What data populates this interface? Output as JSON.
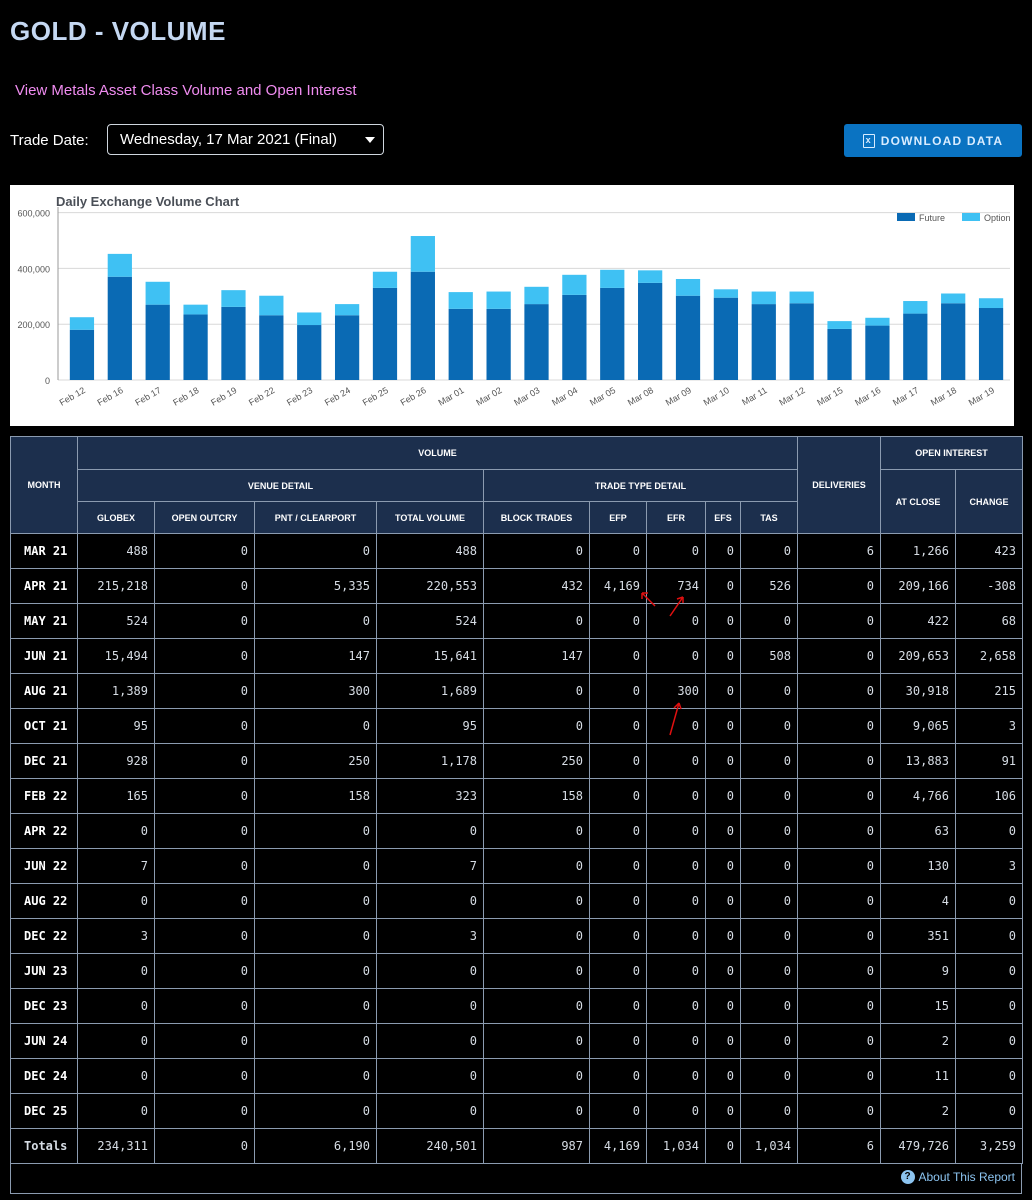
{
  "page_title": "GOLD - VOLUME",
  "metals_link": "View Metals Asset Class Volume and Open Interest",
  "trade_date_label": "Trade Date:",
  "trade_date_value": "Wednesday, 17 Mar 2021 (Final)",
  "download_label": "DOWNLOAD DATA",
  "about_label": "About This Report",
  "chart_data": {
    "type": "bar",
    "title": "Daily Exchange Volume Chart",
    "categories": [
      "Feb 12",
      "Feb 16",
      "Feb 17",
      "Feb 18",
      "Feb 19",
      "Feb 22",
      "Feb 23",
      "Feb 24",
      "Feb 25",
      "Feb 26",
      "Mar 01",
      "Mar 02",
      "Mar 03",
      "Mar 04",
      "Mar 05",
      "Mar 08",
      "Mar 09",
      "Mar 10",
      "Mar 11",
      "Mar 12",
      "Mar 15",
      "Mar 16",
      "Mar 17",
      "Mar 18",
      "Mar 19"
    ],
    "series": [
      {
        "name": "Future",
        "color": "#0a6ab4",
        "values": [
          180000,
          370000,
          270000,
          235000,
          262000,
          232000,
          197000,
          232000,
          330000,
          388000,
          255000,
          255000,
          272000,
          305000,
          330000,
          348000,
          302000,
          295000,
          272000,
          275000,
          183000,
          195000,
          238000,
          275000,
          258000
        ]
      },
      {
        "name": "Option",
        "color": "#3fc1f3",
        "values": [
          45000,
          82000,
          82000,
          35000,
          60000,
          70000,
          45000,
          40000,
          58000,
          128000,
          60000,
          62000,
          62000,
          72000,
          65000,
          45000,
          60000,
          30000,
          45000,
          42000,
          28000,
          28000,
          45000,
          35000,
          35000
        ]
      }
    ],
    "stacked": true,
    "yticks": [
      0,
      200000,
      400000,
      600000
    ],
    "ytick_labels": [
      "0",
      "200,000",
      "400,000",
      "600,000"
    ],
    "ylim": [
      0,
      620000
    ],
    "legend": "top-right",
    "grid": true
  },
  "table": {
    "group_headers": {
      "volume": "VOLUME",
      "venue": "VENUE DETAIL",
      "trade_type": "TRADE TYPE DETAIL",
      "deliveries": "DELIVERIES",
      "open_interest": "OPEN INTEREST",
      "month": "MONTH"
    },
    "columns": [
      "GLOBEX",
      "OPEN OUTCRY",
      "PNT / CLEARPORT",
      "TOTAL VOLUME",
      "BLOCK TRADES",
      "EFP",
      "EFR",
      "EFS",
      "TAS",
      "AT CLOSE",
      "CHANGE"
    ],
    "rows": [
      {
        "month": "MAR 21",
        "cells": [
          "488",
          "0",
          "0",
          "488",
          "0",
          "0",
          "0",
          "0",
          "0",
          "6",
          "1,266",
          "423"
        ]
      },
      {
        "month": "APR 21",
        "cells": [
          "215,218",
          "0",
          "5,335",
          "220,553",
          "432",
          "4,169",
          "734",
          "0",
          "526",
          "0",
          "209,166",
          "-308"
        ]
      },
      {
        "month": "MAY 21",
        "cells": [
          "524",
          "0",
          "0",
          "524",
          "0",
          "0",
          "0",
          "0",
          "0",
          "0",
          "422",
          "68"
        ]
      },
      {
        "month": "JUN 21",
        "cells": [
          "15,494",
          "0",
          "147",
          "15,641",
          "147",
          "0",
          "0",
          "0",
          "508",
          "0",
          "209,653",
          "2,658"
        ]
      },
      {
        "month": "AUG 21",
        "cells": [
          "1,389",
          "0",
          "300",
          "1,689",
          "0",
          "0",
          "300",
          "0",
          "0",
          "0",
          "30,918",
          "215"
        ]
      },
      {
        "month": "OCT 21",
        "cells": [
          "95",
          "0",
          "0",
          "95",
          "0",
          "0",
          "0",
          "0",
          "0",
          "0",
          "9,065",
          "3"
        ]
      },
      {
        "month": "DEC 21",
        "cells": [
          "928",
          "0",
          "250",
          "1,178",
          "250",
          "0",
          "0",
          "0",
          "0",
          "0",
          "13,883",
          "91"
        ]
      },
      {
        "month": "FEB 22",
        "cells": [
          "165",
          "0",
          "158",
          "323",
          "158",
          "0",
          "0",
          "0",
          "0",
          "0",
          "4,766",
          "106"
        ]
      },
      {
        "month": "APR 22",
        "cells": [
          "0",
          "0",
          "0",
          "0",
          "0",
          "0",
          "0",
          "0",
          "0",
          "0",
          "63",
          "0"
        ]
      },
      {
        "month": "JUN 22",
        "cells": [
          "7",
          "0",
          "0",
          "7",
          "0",
          "0",
          "0",
          "0",
          "0",
          "0",
          "130",
          "3"
        ]
      },
      {
        "month": "AUG 22",
        "cells": [
          "0",
          "0",
          "0",
          "0",
          "0",
          "0",
          "0",
          "0",
          "0",
          "0",
          "4",
          "0"
        ]
      },
      {
        "month": "DEC 22",
        "cells": [
          "3",
          "0",
          "0",
          "3",
          "0",
          "0",
          "0",
          "0",
          "0",
          "0",
          "351",
          "0"
        ]
      },
      {
        "month": "JUN 23",
        "cells": [
          "0",
          "0",
          "0",
          "0",
          "0",
          "0",
          "0",
          "0",
          "0",
          "0",
          "9",
          "0"
        ]
      },
      {
        "month": "DEC 23",
        "cells": [
          "0",
          "0",
          "0",
          "0",
          "0",
          "0",
          "0",
          "0",
          "0",
          "0",
          "15",
          "0"
        ]
      },
      {
        "month": "JUN 24",
        "cells": [
          "0",
          "0",
          "0",
          "0",
          "0",
          "0",
          "0",
          "0",
          "0",
          "0",
          "2",
          "0"
        ]
      },
      {
        "month": "DEC 24",
        "cells": [
          "0",
          "0",
          "0",
          "0",
          "0",
          "0",
          "0",
          "0",
          "0",
          "0",
          "11",
          "0"
        ]
      },
      {
        "month": "DEC 25",
        "cells": [
          "0",
          "0",
          "0",
          "0",
          "0",
          "0",
          "0",
          "0",
          "0",
          "0",
          "2",
          "0"
        ]
      }
    ],
    "totals": {
      "month": "Totals",
      "cells": [
        "234,311",
        "0",
        "6,190",
        "240,501",
        "987",
        "4,169",
        "1,034",
        "0",
        "1,034",
        "6",
        "479,726",
        "3,259"
      ]
    }
  }
}
